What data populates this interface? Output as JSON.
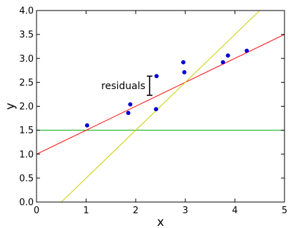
{
  "chart_data": {
    "type": "scatter",
    "xlabel": "x",
    "ylabel": "y",
    "xlim": [
      0,
      5
    ],
    "ylim": [
      0.0,
      4.0
    ],
    "xticks": [
      "0",
      "1",
      "2",
      "3",
      "4",
      "5"
    ],
    "yticks": [
      "0.0",
      "0.5",
      "1.0",
      "1.5",
      "2.0",
      "2.5",
      "3.0",
      "3.5",
      "4.0"
    ],
    "grid": false,
    "points": {
      "color": "#0000cc",
      "x": [
        1.02,
        1.85,
        1.89,
        2.41,
        2.42,
        2.96,
        2.98,
        3.76,
        3.86,
        4.24
      ],
      "y": [
        1.6,
        1.86,
        2.04,
        1.94,
        2.63,
        2.92,
        2.71,
        2.92,
        3.06,
        3.16
      ]
    },
    "lines": [
      {
        "color": "#00aa00",
        "intercept": 1.5,
        "slope": 0.0
      },
      {
        "color": "#ff0000",
        "intercept": 1.0,
        "slope": 0.5
      },
      {
        "color": "#cccc00",
        "intercept": -0.5,
        "slope": 1.0
      }
    ],
    "annotation": {
      "text": "residuals",
      "x": 2.28,
      "y_top": 2.63,
      "y_bottom": 2.23
    }
  }
}
